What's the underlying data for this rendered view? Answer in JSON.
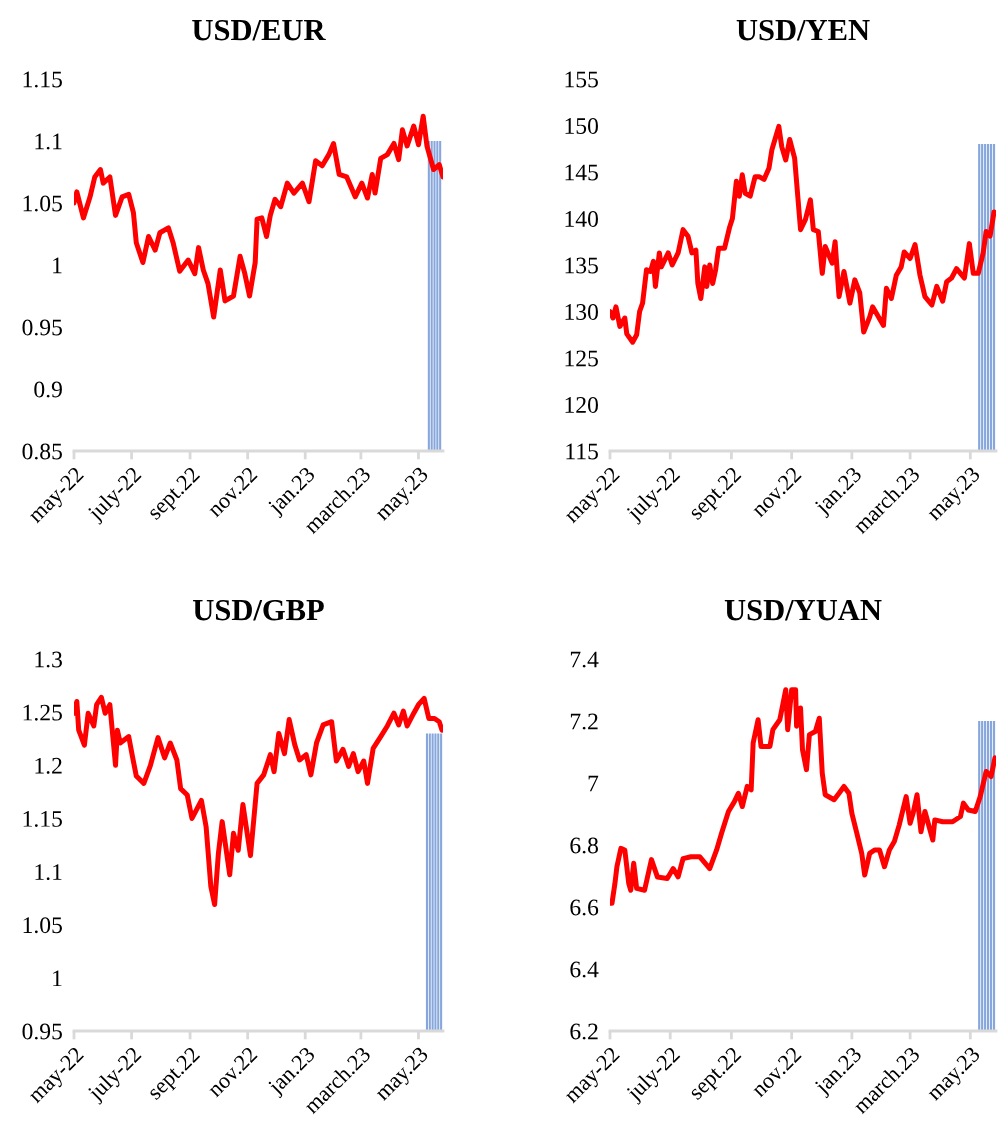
{
  "chart_data": [
    {
      "type": "line",
      "title": "USD/EUR",
      "xlim": [
        "2022-05-01",
        "2023-05-27"
      ],
      "ylim": [
        0.85,
        1.15
      ],
      "yticks": [
        0.85,
        0.9,
        0.95,
        1,
        1.05,
        1.1,
        1.15
      ],
      "xticks": [
        {
          "value": "2022-05-01",
          "label": "may-22"
        },
        {
          "value": "2022-07-01",
          "label": "july-22"
        },
        {
          "value": "2022-09-01",
          "label": "sept.22"
        },
        {
          "value": "2022-11-01",
          "label": "nov.22"
        },
        {
          "value": "2023-01-01",
          "label": "jan.23"
        },
        {
          "value": "2023-03-01",
          "label": "march.23"
        },
        {
          "value": "2023-05-01",
          "label": "may.23"
        }
      ],
      "grid": false,
      "legend": false,
      "series": [
        {
          "type": "bar",
          "color": "#86a6dc",
          "x": [
            "2023-05-12",
            "2023-05-15",
            "2023-05-18",
            "2023-05-21",
            "2023-05-24"
          ],
          "values": [
            1.1,
            1.1,
            1.1,
            1.1,
            1.1
          ]
        },
        {
          "color": "#ff0000",
          "x": [
            "2022-05-01",
            "2022-05-04",
            "2022-05-11",
            "2022-05-18",
            "2022-05-23",
            "2022-05-29",
            "2022-06-01",
            "2022-06-08",
            "2022-06-14",
            "2022-06-21",
            "2022-06-28",
            "2022-07-03",
            "2022-07-06",
            "2022-07-13",
            "2022-07-19",
            "2022-07-26",
            "2022-07-31",
            "2022-08-09",
            "2022-08-14",
            "2022-08-21",
            "2022-08-30",
            "2022-09-06",
            "2022-09-10",
            "2022-09-15",
            "2022-09-20",
            "2022-09-26",
            "2022-10-03",
            "2022-10-08",
            "2022-10-17",
            "2022-10-24",
            "2022-10-29",
            "2022-11-03",
            "2022-11-09",
            "2022-11-11",
            "2022-11-16",
            "2022-11-21",
            "2022-11-25",
            "2022-11-30",
            "2022-12-06",
            "2022-12-13",
            "2022-12-20",
            "2022-12-29",
            "2023-01-05",
            "2023-01-12",
            "2023-01-19",
            "2023-01-26",
            "2023-01-31",
            "2023-02-06",
            "2023-02-14",
            "2023-02-23",
            "2023-03-02",
            "2023-03-08",
            "2023-03-13",
            "2023-03-16",
            "2023-03-22",
            "2023-03-29",
            "2023-04-05",
            "2023-04-10",
            "2023-04-14",
            "2023-04-19",
            "2023-04-26",
            "2023-05-01",
            "2023-05-06",
            "2023-05-10",
            "2023-05-17",
            "2023-05-23",
            "2023-05-27"
          ],
          "values": [
            1.05,
            1.059,
            1.038,
            1.055,
            1.071,
            1.077,
            1.066,
            1.071,
            1.04,
            1.055,
            1.057,
            1.042,
            1.018,
            1.002,
            1.023,
            1.012,
            1.026,
            1.03,
            1.018,
            0.995,
            1.004,
            0.993,
            1.014,
            0.996,
            0.985,
            0.958,
            0.996,
            0.971,
            0.975,
            1.007,
            0.993,
            0.975,
            1.002,
            1.037,
            1.038,
            1.023,
            1.04,
            1.053,
            1.047,
            1.066,
            1.058,
            1.066,
            1.051,
            1.084,
            1.08,
            1.089,
            1.098,
            1.073,
            1.071,
            1.055,
            1.066,
            1.054,
            1.073,
            1.058,
            1.086,
            1.089,
            1.098,
            1.085,
            1.109,
            1.096,
            1.112,
            1.097,
            1.12,
            1.096,
            1.077,
            1.081,
            1.071
          ]
        }
      ]
    },
    {
      "type": "line",
      "title": "USD/YEN",
      "xlim": [
        "2022-05-01",
        "2023-05-27"
      ],
      "ylim": [
        115,
        155
      ],
      "yticks": [
        115,
        120,
        125,
        130,
        135,
        140,
        145,
        150,
        155
      ],
      "xticks": [
        {
          "value": "2022-05-01",
          "label": "may-22"
        },
        {
          "value": "2022-07-01",
          "label": "july-22"
        },
        {
          "value": "2022-09-01",
          "label": "sept.22"
        },
        {
          "value": "2022-11-01",
          "label": "nov.22"
        },
        {
          "value": "2023-01-01",
          "label": "jan.23"
        },
        {
          "value": "2023-03-01",
          "label": "march.23"
        },
        {
          "value": "2023-05-01",
          "label": "may.23"
        }
      ],
      "grid": false,
      "legend": false,
      "series": [
        {
          "type": "bar",
          "color": "#86a6dc",
          "x": [
            "2023-05-10",
            "2023-05-13",
            "2023-05-16",
            "2023-05-19",
            "2023-05-22",
            "2023-05-25"
          ],
          "values": [
            148,
            148,
            148,
            148,
            148,
            148
          ]
        },
        {
          "color": "#ff0000",
          "x": [
            "2022-05-01",
            "2022-05-04",
            "2022-05-07",
            "2022-05-11",
            "2022-05-16",
            "2022-05-18",
            "2022-05-24",
            "2022-05-28",
            "2022-05-31",
            "2022-06-03",
            "2022-06-07",
            "2022-06-11",
            "2022-06-14",
            "2022-06-16",
            "2022-06-20",
            "2022-06-22",
            "2022-06-29",
            "2022-07-03",
            "2022-07-09",
            "2022-07-14",
            "2022-07-19",
            "2022-07-23",
            "2022-07-27",
            "2022-07-29",
            "2022-08-01",
            "2022-08-05",
            "2022-08-07",
            "2022-08-10",
            "2022-08-13",
            "2022-08-16",
            "2022-08-19",
            "2022-08-25",
            "2022-08-30",
            "2022-09-02",
            "2022-09-06",
            "2022-09-09",
            "2022-09-12",
            "2022-09-15",
            "2022-09-20",
            "2022-09-25",
            "2022-09-29",
            "2022-10-04",
            "2022-10-09",
            "2022-10-12",
            "2022-10-19",
            "2022-10-22",
            "2022-10-26",
            "2022-10-30",
            "2022-11-04",
            "2022-11-10",
            "2022-11-15",
            "2022-11-20",
            "2022-11-23",
            "2022-11-28",
            "2022-12-02",
            "2022-12-05",
            "2022-12-12",
            "2022-12-15",
            "2022-12-19",
            "2022-12-24",
            "2022-12-30",
            "2023-01-04",
            "2023-01-09",
            "2023-01-13",
            "2023-01-19",
            "2023-01-22",
            "2023-01-27",
            "2023-02-02",
            "2023-02-05",
            "2023-02-10",
            "2023-02-15",
            "2023-02-20",
            "2023-02-23",
            "2023-03-01",
            "2023-03-06",
            "2023-03-11",
            "2023-03-16",
            "2023-03-23",
            "2023-03-28",
            "2023-04-03",
            "2023-04-07",
            "2023-04-12",
            "2023-04-17",
            "2023-04-25",
            "2023-04-30",
            "2023-05-04",
            "2023-05-09",
            "2023-05-14",
            "2023-05-17",
            "2023-05-21",
            "2023-05-25"
          ],
          "values": [
            130,
            129.3,
            130.5,
            128.4,
            129.3,
            127.6,
            126.7,
            127.5,
            130,
            130.9,
            134.5,
            134.3,
            135.4,
            132.7,
            136.3,
            134.8,
            136.3,
            135,
            136.3,
            138.8,
            138.1,
            136.3,
            136.6,
            133,
            131.4,
            134.8,
            132.7,
            135,
            133,
            134.5,
            136.8,
            136.8,
            139,
            140,
            144,
            142.4,
            144.7,
            142.7,
            142.4,
            144.5,
            144.5,
            144.2,
            145.4,
            147.4,
            149.9,
            147.7,
            146.3,
            148.5,
            146.5,
            138.8,
            139.9,
            142,
            138.8,
            138.6,
            134.1,
            137,
            135.2,
            137.5,
            131.6,
            134.3,
            130.9,
            133.4,
            132,
            127.8,
            129.4,
            130.5,
            129.6,
            128.5,
            132.5,
            131.4,
            133.9,
            134.8,
            136.4,
            135.7,
            137.2,
            133.9,
            131.6,
            130.7,
            132.7,
            131.1,
            133.2,
            133.6,
            134.6,
            133.6,
            137.3,
            134.1,
            134.1,
            136.3,
            138.6,
            138.1,
            140.7
          ]
        }
      ]
    },
    {
      "type": "line",
      "title": "USD/GBP",
      "xlim": [
        "2022-05-01",
        "2023-05-27"
      ],
      "ylim": [
        0.95,
        1.3
      ],
      "yticks": [
        0.95,
        1,
        1.05,
        1.1,
        1.15,
        1.2,
        1.25,
        1.3
      ],
      "xticks": [
        {
          "value": "2022-05-01",
          "label": "may-22"
        },
        {
          "value": "2022-07-01",
          "label": "july-22"
        },
        {
          "value": "2022-09-01",
          "label": "sept.22"
        },
        {
          "value": "2022-11-01",
          "label": "nov.22"
        },
        {
          "value": "2023-01-01",
          "label": "jan.23"
        },
        {
          "value": "2023-03-01",
          "label": "march.23"
        },
        {
          "value": "2023-05-01",
          "label": "may.23"
        }
      ],
      "grid": false,
      "legend": false,
      "series": [
        {
          "type": "bar",
          "color": "#86a6dc",
          "x": [
            "2023-05-10",
            "2023-05-13",
            "2023-05-16",
            "2023-05-19",
            "2023-05-22",
            "2023-05-25"
          ],
          "values": [
            1.23,
            1.23,
            1.23,
            1.23,
            1.23,
            1.23
          ]
        },
        {
          "color": "#ff0000",
          "x": [
            "2022-05-01",
            "2022-05-04",
            "2022-05-06",
            "2022-05-12",
            "2022-05-16",
            "2022-05-22",
            "2022-05-25",
            "2022-05-30",
            "2022-06-03",
            "2022-06-08",
            "2022-06-14",
            "2022-06-16",
            "2022-06-19",
            "2022-06-28",
            "2022-07-02",
            "2022-07-06",
            "2022-07-14",
            "2022-07-21",
            "2022-07-29",
            "2022-08-05",
            "2022-08-11",
            "2022-08-18",
            "2022-08-22",
            "2022-08-29",
            "2022-09-03",
            "2022-09-13",
            "2022-09-18",
            "2022-09-23",
            "2022-09-27",
            "2022-10-01",
            "2022-10-05",
            "2022-10-13",
            "2022-10-17",
            "2022-10-22",
            "2022-10-27",
            "2022-11-04",
            "2022-11-11",
            "2022-11-18",
            "2022-11-25",
            "2022-11-29",
            "2022-12-04",
            "2022-12-10",
            "2022-12-15",
            "2022-12-21",
            "2022-12-26",
            "2023-01-02",
            "2023-01-07",
            "2023-01-13",
            "2023-01-20",
            "2023-01-29",
            "2023-02-03",
            "2023-02-10",
            "2023-02-16",
            "2023-02-21",
            "2023-02-26",
            "2023-03-04",
            "2023-03-08",
            "2023-03-14",
            "2023-03-22",
            "2023-03-29",
            "2023-04-05",
            "2023-04-10",
            "2023-04-15",
            "2023-04-19",
            "2023-04-26",
            "2023-05-01",
            "2023-05-07",
            "2023-05-12",
            "2023-05-18",
            "2023-05-23",
            "2023-05-26"
          ],
          "values": [
            1.249,
            1.26,
            1.233,
            1.219,
            1.249,
            1.237,
            1.257,
            1.264,
            1.249,
            1.257,
            1.2,
            1.233,
            1.221,
            1.227,
            1.208,
            1.19,
            1.183,
            1.2,
            1.226,
            1.207,
            1.221,
            1.205,
            1.178,
            1.172,
            1.15,
            1.167,
            1.142,
            1.086,
            1.069,
            1.117,
            1.147,
            1.097,
            1.136,
            1.12,
            1.163,
            1.115,
            1.183,
            1.191,
            1.21,
            1.194,
            1.23,
            1.211,
            1.243,
            1.219,
            1.205,
            1.21,
            1.191,
            1.221,
            1.238,
            1.241,
            1.204,
            1.215,
            1.199,
            1.211,
            1.194,
            1.204,
            1.183,
            1.216,
            1.227,
            1.237,
            1.249,
            1.238,
            1.251,
            1.237,
            1.249,
            1.257,
            1.263,
            1.244,
            1.244,
            1.241,
            1.233
          ]
        }
      ]
    },
    {
      "type": "line",
      "title": "USD/YUAN",
      "xlim": [
        "2022-05-01",
        "2023-05-27"
      ],
      "ylim": [
        6.2,
        7.4
      ],
      "yticks": [
        6.2,
        6.4,
        6.6,
        6.8,
        7,
        7.2,
        7.4
      ],
      "xticks": [
        {
          "value": "2022-05-01",
          "label": "may-22"
        },
        {
          "value": "2022-07-01",
          "label": "july-22"
        },
        {
          "value": "2022-09-01",
          "label": "sept.22"
        },
        {
          "value": "2022-11-01",
          "label": "nov.22"
        },
        {
          "value": "2023-01-01",
          "label": "jan.23"
        },
        {
          "value": "2023-03-01",
          "label": "march.23"
        },
        {
          "value": "2023-05-01",
          "label": "may.23"
        }
      ],
      "grid": false,
      "legend": false,
      "series": [
        {
          "type": "bar",
          "color": "#86a6dc",
          "x": [
            "2023-05-10",
            "2023-05-13",
            "2023-05-16",
            "2023-05-19",
            "2023-05-22",
            "2023-05-25"
          ],
          "values": [
            7.2,
            7.2,
            7.2,
            7.2,
            7.2,
            7.2
          ]
        },
        {
          "color": "#ff0000",
          "x": [
            "2022-05-01",
            "2022-05-03",
            "2022-05-06",
            "2022-05-08",
            "2022-05-12",
            "2022-05-16",
            "2022-05-20",
            "2022-05-22",
            "2022-05-25",
            "2022-05-28",
            "2022-06-05",
            "2022-06-12",
            "2022-06-18",
            "2022-06-28",
            "2022-07-04",
            "2022-07-09",
            "2022-07-14",
            "2022-07-22",
            "2022-07-31",
            "2022-08-10",
            "2022-08-17",
            "2022-08-22",
            "2022-08-29",
            "2022-09-04",
            "2022-09-08",
            "2022-09-12",
            "2022-09-17",
            "2022-09-21",
            "2022-09-23",
            "2022-09-28",
            "2022-10-01",
            "2022-10-10",
            "2022-10-13",
            "2022-10-20",
            "2022-10-26",
            "2022-10-28",
            "2022-11-01",
            "2022-11-05",
            "2022-11-06",
            "2022-11-10",
            "2022-11-12",
            "2022-11-16",
            "2022-11-19",
            "2022-11-25",
            "2022-11-29",
            "2022-12-02",
            "2022-12-05",
            "2022-12-14",
            "2022-12-19",
            "2022-12-24",
            "2022-12-29",
            "2023-01-01",
            "2023-01-06",
            "2023-01-11",
            "2023-01-14",
            "2023-01-19",
            "2023-01-24",
            "2023-01-29",
            "2023-02-03",
            "2023-02-08",
            "2023-02-13",
            "2023-02-18",
            "2023-02-25",
            "2023-03-01",
            "2023-03-04",
            "2023-03-08",
            "2023-03-12",
            "2023-03-16",
            "2023-03-24",
            "2023-03-26",
            "2023-04-03",
            "2023-04-13",
            "2023-04-21",
            "2023-04-24",
            "2023-04-29",
            "2023-05-06",
            "2023-05-11",
            "2023-05-17",
            "2023-05-22",
            "2023-05-26"
          ],
          "values": [
            6.612,
            6.612,
            6.676,
            6.73,
            6.789,
            6.784,
            6.676,
            6.654,
            6.741,
            6.66,
            6.654,
            6.753,
            6.697,
            6.692,
            6.724,
            6.697,
            6.756,
            6.762,
            6.762,
            6.724,
            6.784,
            6.838,
            6.908,
            6.94,
            6.967,
            6.924,
            6.989,
            6.978,
            7.129,
            7.204,
            7.118,
            7.118,
            7.172,
            7.204,
            7.301,
            7.172,
            7.301,
            7.301,
            7.183,
            7.242,
            7.107,
            7.043,
            7.156,
            7.166,
            7.209,
            7.032,
            6.962,
            6.946,
            6.967,
            6.989,
            6.967,
            6.902,
            6.838,
            6.773,
            6.703,
            6.773,
            6.784,
            6.784,
            6.73,
            6.784,
            6.811,
            6.865,
            6.956,
            6.87,
            6.902,
            6.962,
            6.843,
            6.908,
            6.816,
            6.881,
            6.875,
            6.875,
            6.892,
            6.935,
            6.913,
            6.908,
            6.956,
            7.037,
            7.021,
            7.081
          ]
        }
      ]
    }
  ]
}
